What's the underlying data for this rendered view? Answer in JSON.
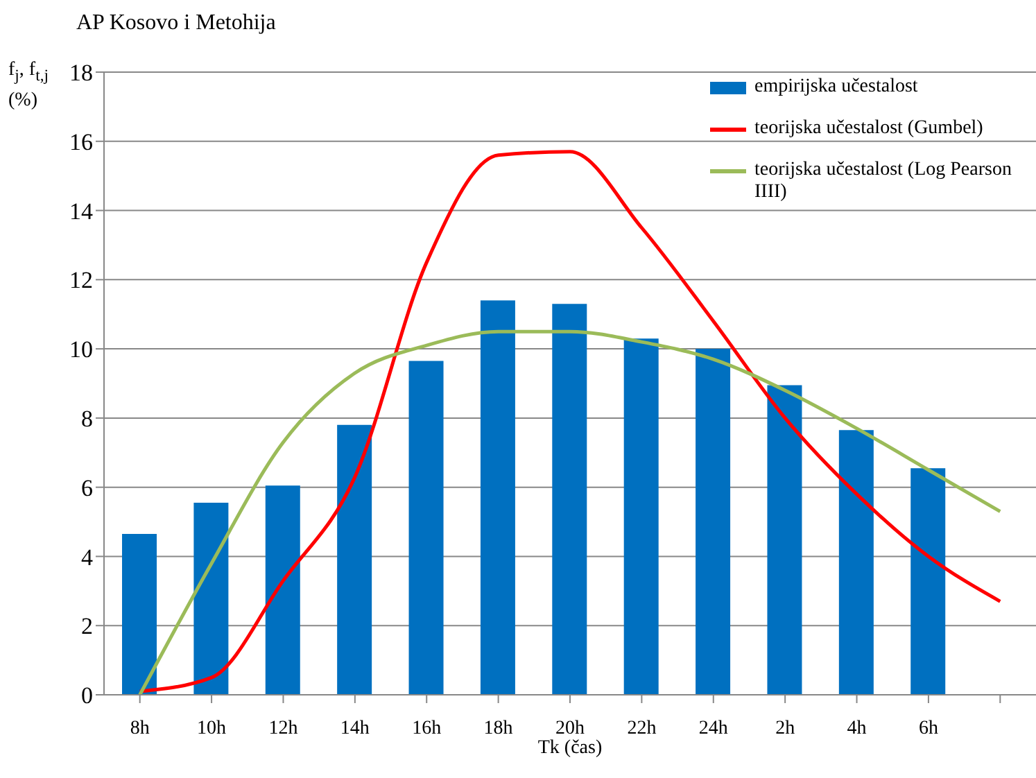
{
  "chart_data": {
    "type": "bar",
    "title": "AP Kosovo i Metohija",
    "ylabel": "f$_{j}$, f$_{t,j}$ (%)",
    "xlabel": "Tk (čas)",
    "categories": [
      "8h",
      "10h",
      "12h",
      "14h",
      "16h",
      "18h",
      "20h",
      "22h",
      "24h",
      "2h",
      "4h",
      "6h",
      null
    ],
    "ylim": [
      0,
      18
    ],
    "yticks": [
      0,
      2,
      4,
      6,
      8,
      10,
      12,
      14,
      16,
      18
    ],
    "grid": "y",
    "legend": "top right",
    "series": [
      {
        "name": "empirijska učestalost",
        "color": "#0070c0",
        "values": [
          4.65,
          5.55,
          6.05,
          7.8,
          9.65,
          11.4,
          11.3,
          10.3,
          10.0,
          8.95,
          7.65,
          6.55,
          null
        ]
      },
      {
        "name": "teorijska učestalost (Gumbel)",
        "type": "line",
        "color": "#ff0000",
        "values": [
          0.1,
          0.5,
          3.3,
          6.3,
          12.5,
          15.6,
          15.7,
          13.5,
          10.8,
          8.0,
          5.8,
          4.0,
          2.7
        ]
      },
      {
        "name": "teorijska učestalost (Log Pearson IIII)",
        "type": "line",
        "color": "#9bbb59",
        "values": [
          0,
          3.8,
          7.3,
          9.3,
          10.1,
          10.5,
          10.5,
          10.2,
          9.7,
          8.8,
          7.7,
          6.5,
          5.3
        ]
      }
    ]
  }
}
